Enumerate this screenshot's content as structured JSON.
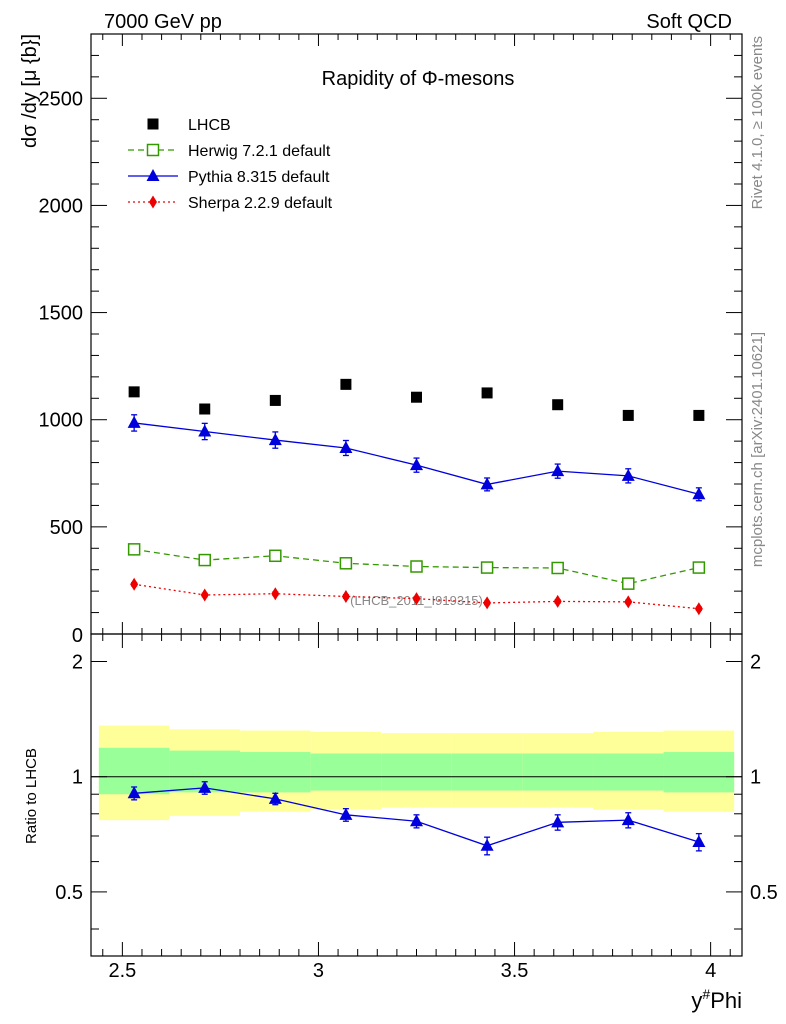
{
  "header": {
    "left": "7000 GeV pp",
    "right": "Soft QCD"
  },
  "side_labels": {
    "rivet": "Rivet 4.1.0, ≥ 100k events",
    "mcplots": "mcplots.cern.ch [arXiv:2401.10621]"
  },
  "chart_data": [
    {
      "type": "scatter",
      "title": "Rapidity of Φ-mesons",
      "ylabel": "dσ /dy [μ {b}]",
      "xlim": [
        2.42,
        4.08
      ],
      "ylim": [
        0,
        2800
      ],
      "yticks": [
        500,
        1000,
        1500,
        2000,
        2500
      ],
      "ytick_labels": [
        "500",
        "1000",
        "1500",
        "2000",
        "2500"
      ],
      "bottom_cut_label": "0",
      "watermark": "(LHCB_2011_I919315)",
      "x": [
        2.53,
        2.71,
        2.89,
        3.07,
        3.25,
        3.43,
        3.61,
        3.79,
        3.97
      ],
      "series": [
        {
          "name": "LHCB",
          "style": "data",
          "color": "#000000",
          "values": [
            1130,
            1050,
            1090,
            1165,
            1105,
            1125,
            1070,
            1020,
            1020
          ],
          "errors": [
            0,
            0,
            0,
            0,
            0,
            0,
            0,
            0,
            0
          ]
        },
        {
          "name": "Herwig 7.2.1 default",
          "style": "herwig",
          "color": "#339900",
          "values": [
            395,
            345,
            365,
            330,
            315,
            310,
            308,
            235,
            310
          ],
          "errors": [
            12,
            12,
            12,
            12,
            12,
            12,
            12,
            12,
            12
          ]
        },
        {
          "name": "Pythia 8.315 default",
          "style": "pythia",
          "color": "#0000dd",
          "values": [
            985,
            945,
            905,
            868,
            788,
            698,
            760,
            738,
            652
          ],
          "errors": [
            38,
            38,
            38,
            35,
            33,
            30,
            33,
            33,
            30
          ]
        },
        {
          "name": "Sherpa 2.2.9 default",
          "style": "sherpa",
          "color": "#ee0000",
          "values": [
            232,
            182,
            188,
            175,
            165,
            145,
            152,
            150,
            118
          ],
          "errors": [
            8,
            8,
            8,
            8,
            8,
            8,
            8,
            8,
            8
          ]
        }
      ]
    },
    {
      "type": "line",
      "ylabel": "Ratio to LHCB",
      "ylim": [
        0.34,
        2.36
      ],
      "yticks": [
        0.5,
        1,
        2
      ],
      "ytick_labels": [
        "0.5",
        "1",
        "2"
      ],
      "x_ticks": [
        2.5,
        3,
        3.5,
        4
      ],
      "x_tick_labels": [
        "2.5",
        "3",
        "3.5",
        "4"
      ],
      "xlabel": "y#Phi",
      "xlabel_parts": {
        "base": "y",
        "sup": "#",
        "rest": "Phi"
      },
      "bins": [
        [
          2.44,
          2.62
        ],
        [
          2.62,
          2.8
        ],
        [
          2.8,
          2.98
        ],
        [
          2.98,
          3.16
        ],
        [
          3.16,
          3.34
        ],
        [
          3.34,
          3.52
        ],
        [
          3.52,
          3.7
        ],
        [
          3.7,
          3.88
        ],
        [
          3.88,
          4.06
        ]
      ],
      "band_outer": [
        [
          0.77,
          1.36
        ],
        [
          0.79,
          1.33
        ],
        [
          0.81,
          1.32
        ],
        [
          0.82,
          1.31
        ],
        [
          0.83,
          1.3
        ],
        [
          0.83,
          1.3
        ],
        [
          0.83,
          1.3
        ],
        [
          0.82,
          1.31
        ],
        [
          0.81,
          1.32
        ]
      ],
      "band_inner": [
        [
          0.9,
          1.19
        ],
        [
          0.91,
          1.17
        ],
        [
          0.91,
          1.16
        ],
        [
          0.92,
          1.15
        ],
        [
          0.92,
          1.15
        ],
        [
          0.92,
          1.15
        ],
        [
          0.92,
          1.15
        ],
        [
          0.92,
          1.15
        ],
        [
          0.91,
          1.16
        ]
      ],
      "reference_line": 1,
      "series": [
        {
          "name": "Pythia 8.315 default",
          "color": "#0000dd",
          "values": [
            0.905,
            0.935,
            0.875,
            0.795,
            0.765,
            0.66,
            0.76,
            0.77,
            0.675
          ],
          "errors": [
            0.035,
            0.035,
            0.03,
            0.03,
            0.03,
            0.035,
            0.035,
            0.035,
            0.035
          ]
        }
      ]
    }
  ],
  "colors": {
    "band_outer": "#ffff99",
    "band_inner": "#99ff99",
    "watermark": "#888888"
  }
}
